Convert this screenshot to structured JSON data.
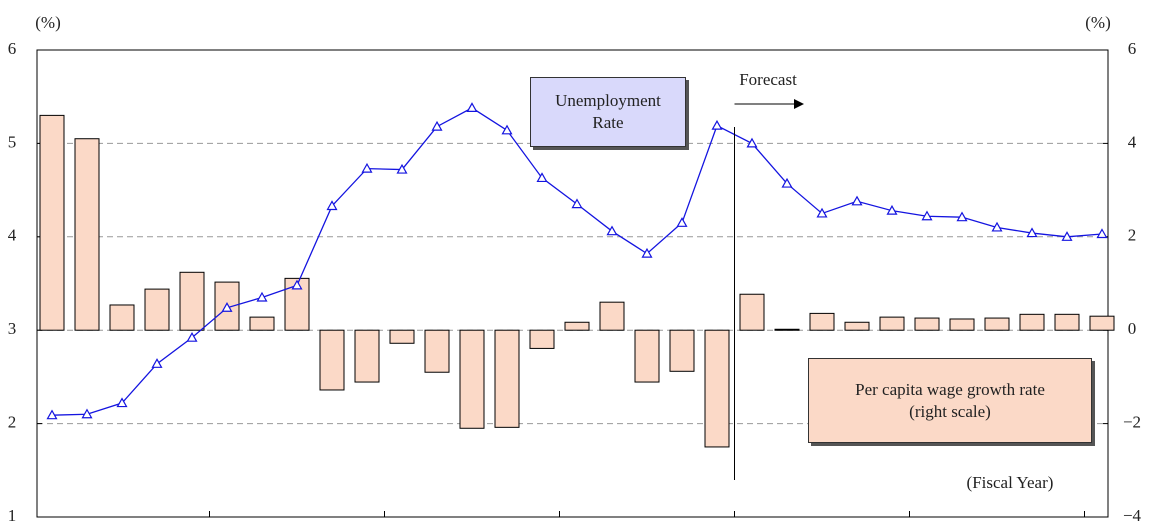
{
  "chart_data": {
    "type": "bar-line",
    "left_unit": "(%)",
    "right_unit": "(%)",
    "categories": [
      null,
      null,
      null,
      null,
      null,
      null,
      null,
      null,
      null,
      null,
      null,
      null,
      null,
      null,
      null,
      null,
      null,
      null,
      null,
      null,
      null,
      null,
      null,
      null,
      null,
      null,
      null,
      null,
      null,
      null,
      null
    ],
    "series": [
      {
        "name": "Per capita wage growth rate",
        "note": "(right scale)",
        "type": "bar",
        "axis": "y2",
        "color": "#fbd9c7",
        "values": [
          4.6,
          4.1,
          0.54,
          0.88,
          1.24,
          1.03,
          0.28,
          1.11,
          -1.28,
          -1.11,
          -0.28,
          -0.9,
          -2.1,
          -2.08,
          -0.39,
          0.17,
          0.6,
          -1.11,
          -0.88,
          -2.5,
          0.77,
          0.02,
          0.36,
          0.17,
          0.28,
          0.26,
          0.24,
          0.26,
          0.34,
          0.34,
          0.3
        ]
      },
      {
        "name": "Unemployment Rate",
        "type": "line",
        "axis": "y",
        "color": "#1414e0",
        "values": [
          2.09,
          2.1,
          2.22,
          2.64,
          2.92,
          3.24,
          3.35,
          3.48,
          4.33,
          4.73,
          4.72,
          5.18,
          5.38,
          5.14,
          4.63,
          4.35,
          4.06,
          3.82,
          4.15,
          5.19,
          5.0,
          4.57,
          4.25,
          4.38,
          4.28,
          4.22,
          4.21,
          4.1,
          4.04,
          4.0,
          4.03
        ]
      }
    ],
    "ylim": [
      1,
      6
    ],
    "yticks": [
      1,
      2,
      3,
      4,
      5,
      6
    ],
    "y2lim": [
      -4,
      6
    ],
    "y2ticks": [
      {
        "value": -4,
        "label": "−4"
      },
      {
        "value": -2,
        "label": "−2"
      },
      0,
      2,
      4,
      6
    ],
    "grid": true,
    "forecast_label": "Forecast",
    "x_label": "(Fiscal Year)"
  }
}
